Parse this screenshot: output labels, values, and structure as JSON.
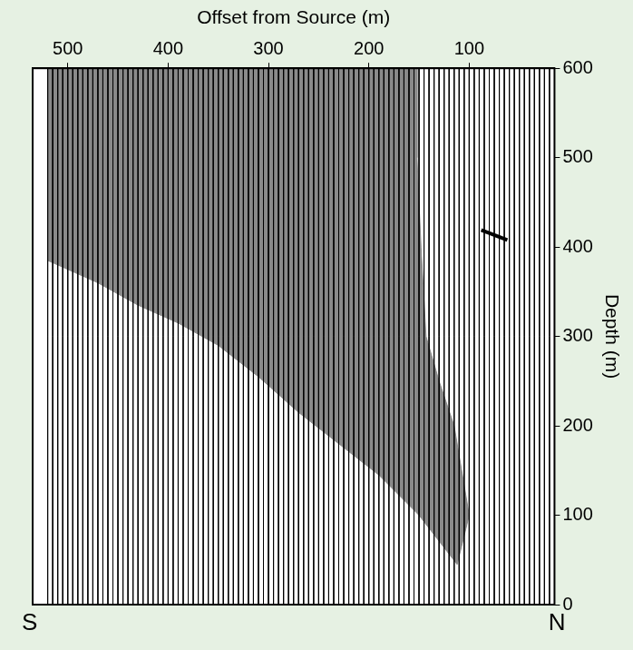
{
  "chart_data": {
    "type": "seismic",
    "x_label": "Offset from Source (m)",
    "y_label": "Depth (m)",
    "xlim": [
      535,
      15
    ],
    "xticks": [
      500,
      400,
      300,
      200,
      100
    ],
    "ylim": [
      600,
      0
    ],
    "yticks": [
      0,
      100,
      200,
      300,
      400,
      500,
      600
    ],
    "grid": false,
    "direction_labels": {
      "left": "S",
      "right": "N"
    },
    "trace_offsets": [
      520,
      515,
      510,
      505,
      500,
      495,
      490,
      485,
      480,
      475,
      470,
      465,
      460,
      455,
      450,
      445,
      440,
      435,
      430,
      425,
      420,
      415,
      410,
      405,
      400,
      395,
      390,
      385,
      380,
      375,
      370,
      365,
      360,
      355,
      350,
      345,
      340,
      335,
      330,
      325,
      320,
      315,
      310,
      305,
      300,
      295,
      290,
      285,
      280,
      275,
      270,
      265,
      260,
      255,
      250,
      245,
      240,
      235,
      230,
      225,
      220,
      215,
      210,
      205,
      200,
      195,
      190,
      185,
      180,
      175,
      170,
      165,
      160,
      155,
      150,
      145,
      140,
      135,
      130,
      125,
      120,
      115,
      110,
      105,
      100,
      95,
      90,
      85,
      80,
      75,
      70,
      65,
      60,
      55,
      50,
      45,
      40,
      35,
      30,
      25,
      20
    ],
    "trace_color": "#000000",
    "active_region": {
      "color": "#8a8a8a",
      "x": [
        112,
        150,
        190,
        230,
        270,
        310,
        350,
        390,
        430,
        470,
        520,
        520,
        152,
        152,
        148,
        143,
        130,
        115,
        100,
        112
      ],
      "y": [
        45,
        100,
        145,
        180,
        215,
        255,
        290,
        315,
        335,
        360,
        385,
        600,
        600,
        500,
        400,
        300,
        250,
        200,
        100,
        45
      ]
    },
    "marker_segment": {
      "color": "#000000",
      "x": [
        88,
        62
      ],
      "y": [
        419,
        408
      ]
    }
  }
}
